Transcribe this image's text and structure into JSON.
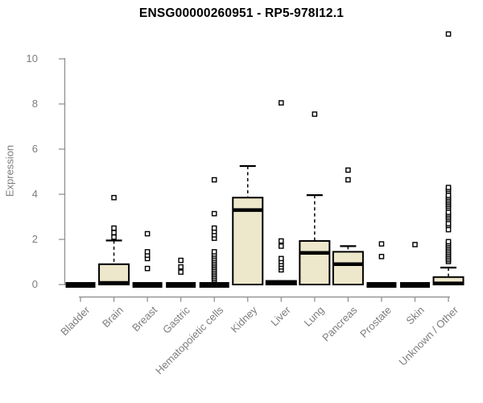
{
  "title": "ENSG00000260951 - RP5-978I12.1",
  "colors": {
    "background": "#ffffff",
    "box_fill": "#EDE7CB",
    "box_border": "#000000",
    "median_line": "#000000",
    "outlier_fill": "#ffffff",
    "axis_line": "#8a8a8a",
    "axis_text": "#7d7d7d",
    "title_text": "#000000"
  },
  "chart_data": {
    "type": "boxplot",
    "title": "ENSG00000260951 - RP5-978I12.1",
    "xlabel": "",
    "ylabel": "Expression",
    "ylim": [
      0,
      11.2
    ],
    "yticks": [
      0,
      2,
      4,
      6,
      8,
      10
    ],
    "grid": "off",
    "legend": "none",
    "categories": [
      "Bladder",
      "Brain",
      "Breast",
      "Gastric",
      "Hematopoietic cells",
      "Kidney",
      "Liver",
      "Lung",
      "Pancreas",
      "Prostate",
      "Skin",
      "Unknown / Other"
    ],
    "boxes": [
      {
        "category": "Bladder",
        "q1": 0,
        "median": 0.03,
        "q3": 0.08,
        "whisker_high": null,
        "outliers": []
      },
      {
        "category": "Brain",
        "q1": 0,
        "median": 0.07,
        "q3": 0.9,
        "whisker_high": 1.95,
        "outliers": [
          2.1,
          2.3,
          2.5,
          3.85
        ]
      },
      {
        "category": "Breast",
        "q1": 0,
        "median": 0.03,
        "q3": 0.08,
        "whisker_high": null,
        "outliers": [
          0.71,
          1.15,
          1.3,
          1.45,
          2.25
        ]
      },
      {
        "category": "Gastric",
        "q1": 0,
        "median": 0.03,
        "q3": 0.08,
        "whisker_high": null,
        "outliers": [
          0.55,
          0.78,
          1.07
        ]
      },
      {
        "category": "Hematopoietic cells",
        "q1": 0,
        "median": 0.03,
        "q3": 0.08,
        "whisker_high": null,
        "outliers": [
          0.2,
          0.28,
          0.36,
          0.44,
          0.52,
          0.6,
          0.68,
          0.76,
          0.84,
          0.92,
          1.0,
          1.08,
          1.17,
          1.26,
          1.35,
          1.45,
          2.05,
          2.2,
          2.35,
          2.5,
          3.14,
          4.64
        ]
      },
      {
        "category": "Kidney",
        "q1": 0,
        "median": 3.3,
        "q3": 3.85,
        "whisker_high": 5.25,
        "outliers": []
      },
      {
        "category": "Liver",
        "q1": 0,
        "median": 0.05,
        "q3": 0.16,
        "whisker_high": null,
        "outliers": [
          0.65,
          0.78,
          0.9,
          1.02,
          1.15,
          1.7,
          1.93,
          8.05
        ]
      },
      {
        "category": "Lung",
        "q1": 0,
        "median": 1.4,
        "q3": 1.93,
        "whisker_high": 3.96,
        "outliers": [
          7.55
        ]
      },
      {
        "category": "Pancreas",
        "q1": 0,
        "median": 0.9,
        "q3": 1.45,
        "whisker_high": 1.7,
        "outliers": [
          4.64,
          5.07
        ]
      },
      {
        "category": "Prostate",
        "q1": 0,
        "median": 0.03,
        "q3": 0.08,
        "whisker_high": null,
        "outliers": [
          1.24,
          1.8
        ]
      },
      {
        "category": "Skin",
        "q1": 0,
        "median": 0.03,
        "q3": 0.08,
        "whisker_high": null,
        "outliers": [
          1.77
        ]
      },
      {
        "category": "Unknown / Other",
        "q1": 0,
        "median": 0.05,
        "q3": 0.33,
        "whisker_high": 0.75,
        "outliers": [
          1.02,
          1.1,
          1.18,
          1.26,
          1.34,
          1.42,
          1.5,
          1.58,
          1.66,
          1.74,
          1.82,
          1.9,
          2.43,
          2.62,
          2.7,
          2.88,
          2.96,
          3.04,
          3.12,
          3.2,
          3.39,
          3.47,
          3.55,
          3.63,
          3.71,
          3.79,
          3.87,
          3.95,
          4.14,
          4.22,
          4.3,
          11.1
        ]
      }
    ]
  }
}
